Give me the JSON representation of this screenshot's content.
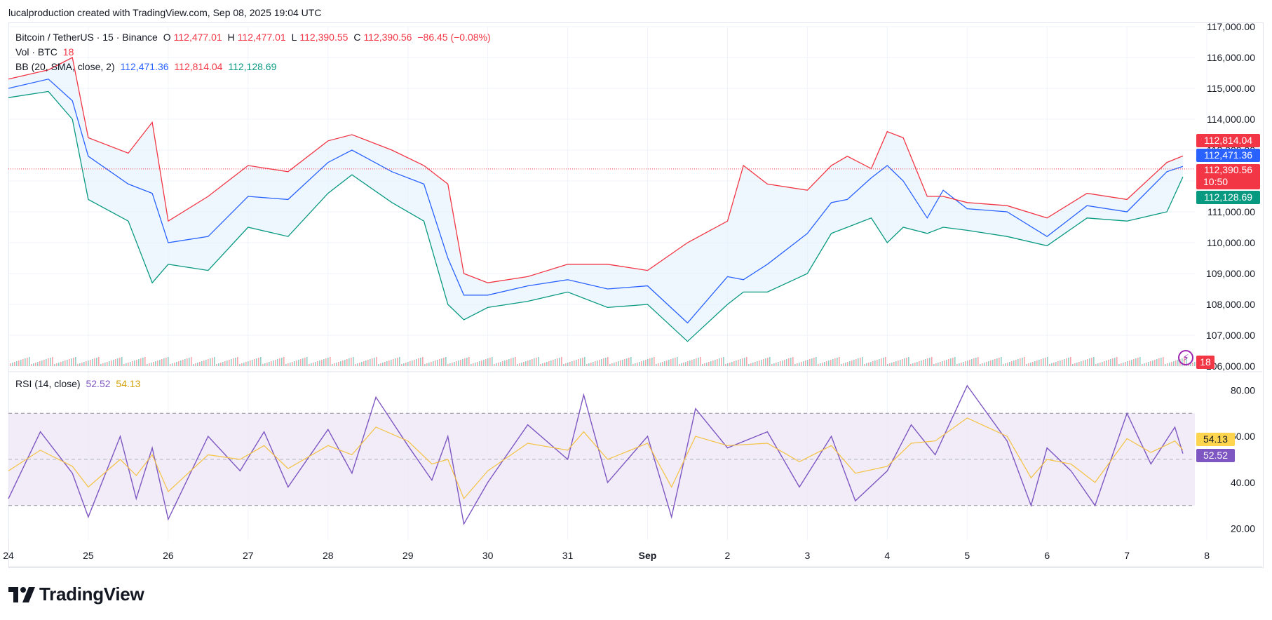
{
  "header": {
    "attribution": "lucalproduction created with TradingView.com, Sep 08, 2025 19:04 UTC"
  },
  "legend": {
    "symbol": "Bitcoin / TetherUS · 15 · Binance",
    "o_label": "O",
    "o": "112,477.01",
    "h_label": "H",
    "h": "112,477.01",
    "l_label": "L",
    "l": "112,390.55",
    "c_label": "C",
    "c": "112,390.56",
    "change": "−86.45 (−0.08%)",
    "vol_label": "Vol · BTC",
    "vol": "18",
    "bb_label": "BB (20, SMA, close, 2)",
    "bb_basis": "112,471.36",
    "bb_upper": "112,814.04",
    "bb_lower": "112,128.69",
    "rsi_label": "RSI (14, close)",
    "rsi": "52.52",
    "rsi_ma": "54.13"
  },
  "price_tags": {
    "upper": "112,814.04",
    "basis": "112,471.36",
    "last": "112,390.56",
    "countdown": "10:50",
    "lower": "112,128.69",
    "volume": "18"
  },
  "rsi_tags": {
    "ma": "54.13",
    "rsi": "52.52"
  },
  "logo": {
    "text": "TradingView"
  },
  "colors": {
    "up": "#089981",
    "down": "#f23645",
    "bb_upper": "#f23645",
    "bb_basis": "#2962ff",
    "bb_lower": "#089981",
    "rsi": "#7e57c2",
    "rsi_ma": "#f5c242",
    "band_fill": "#ede7f6"
  },
  "chart_data": [
    {
      "type": "line",
      "title": "Bitcoin / TetherUS · 15 · Binance",
      "ylim": [
        106000,
        117000
      ],
      "y_ticks": [
        "117,000.00",
        "116,000.00",
        "115,000.00",
        "114,000.00",
        "113,000.00",
        "112,000.00",
        "111,000.00",
        "110,000.00",
        "109,000.00",
        "108,000.00",
        "107,000.00",
        "106,000.00"
      ],
      "x_ticks": [
        "24",
        "25",
        "26",
        "27",
        "28",
        "29",
        "30",
        "31",
        "Sep",
        "2",
        "3",
        "4",
        "5",
        "6",
        "7",
        "8"
      ],
      "x": [
        24.0,
        24.5,
        24.8,
        25.0,
        25.5,
        25.8,
        26.0,
        26.5,
        27.0,
        27.5,
        28.0,
        28.3,
        28.8,
        29.2,
        29.5,
        29.7,
        30.0,
        30.5,
        31.0,
        31.5,
        32.0,
        32.5,
        33.0,
        33.2,
        33.5,
        34.0,
        34.3,
        34.5,
        34.8,
        35.0,
        35.2,
        35.5,
        35.7,
        36.0,
        36.5,
        37.0,
        37.5,
        38.0,
        38.5,
        38.7
      ],
      "series": [
        {
          "values": [
            115000,
            115300,
            114600,
            112800,
            111900,
            111600,
            110000,
            110200,
            111500,
            111400,
            112600,
            113000,
            112300,
            111900,
            109500,
            108300,
            108300,
            108600,
            108800,
            108500,
            108600,
            107400,
            108900,
            108800,
            109300,
            110300,
            111300,
            111400,
            112100,
            112500,
            112000,
            110800,
            111700,
            111100,
            111000,
            110200,
            111200,
            111000,
            112300,
            112470
          ]
        },
        {
          "values": [
            115300,
            115600,
            116000,
            113400,
            112900,
            113900,
            110700,
            111500,
            112500,
            112300,
            113300,
            113500,
            113000,
            112500,
            111900,
            109000,
            108700,
            108900,
            109300,
            109300,
            109100,
            110000,
            110700,
            112500,
            111900,
            111700,
            112500,
            112800,
            112400,
            113600,
            113400,
            111500,
            111500,
            111300,
            111200,
            110800,
            111600,
            111400,
            112600,
            112810
          ]
        },
        {
          "values": [
            114700,
            114900,
            114000,
            111400,
            110700,
            108700,
            109300,
            109100,
            110500,
            110200,
            111600,
            112200,
            111300,
            110700,
            108000,
            107500,
            107900,
            108100,
            108400,
            107900,
            108000,
            106800,
            108000,
            108400,
            108400,
            109000,
            110300,
            110500,
            110800,
            110000,
            110500,
            110300,
            110500,
            110400,
            110200,
            109900,
            110800,
            110700,
            111000,
            112130
          ]
        }
      ]
    },
    {
      "type": "line",
      "title": "RSI (14, close)",
      "ylim": [
        15,
        85
      ],
      "y_ticks": [
        "80.00",
        "60.00",
        "40.00",
        "20.00"
      ],
      "bands": [
        30,
        50,
        70
      ],
      "x": [
        24.0,
        24.4,
        24.8,
        25.0,
        25.4,
        25.6,
        25.8,
        26.0,
        26.5,
        26.9,
        27.2,
        27.5,
        28.0,
        28.3,
        28.6,
        29.0,
        29.3,
        29.5,
        29.7,
        30.0,
        30.5,
        31.0,
        31.2,
        31.5,
        32.0,
        32.3,
        32.6,
        33.0,
        33.5,
        33.9,
        34.3,
        34.6,
        35.0,
        35.3,
        35.6,
        36.0,
        36.5,
        36.8,
        37.0,
        37.3,
        37.6,
        38.0,
        38.3,
        38.6,
        38.7
      ],
      "series": [
        {
          "values": [
            33,
            62,
            44,
            25,
            60,
            33,
            55,
            24,
            60,
            45,
            62,
            38,
            63,
            44,
            77,
            56,
            41,
            60,
            22,
            40,
            65,
            50,
            78,
            40,
            60,
            25,
            72,
            55,
            62,
            38,
            60,
            32,
            45,
            65,
            52,
            82,
            58,
            30,
            55,
            45,
            30,
            70,
            48,
            64,
            52.52
          ]
        },
        {
          "values": [
            45,
            54,
            47,
            38,
            50,
            43,
            52,
            36,
            52,
            50,
            56,
            46,
            56,
            52,
            64,
            58,
            48,
            50,
            33,
            45,
            57,
            54,
            62,
            50,
            57,
            38,
            60,
            56,
            57,
            49,
            56,
            44,
            47,
            57,
            58,
            68,
            60,
            42,
            50,
            48,
            40,
            59,
            53,
            58,
            54.13
          ]
        }
      ]
    }
  ]
}
